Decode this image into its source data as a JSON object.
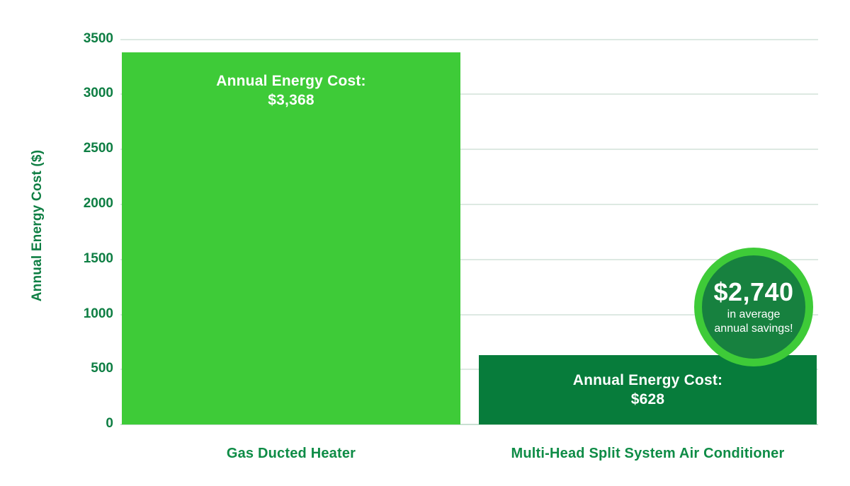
{
  "chart_data": {
    "type": "bar",
    "title": "",
    "xlabel": "",
    "ylabel": "Annual Energy Cost ($)",
    "categories": [
      "Gas Ducted Heater",
      "Multi-Head Split System Air Conditioner"
    ],
    "values": [
      3368,
      628
    ],
    "ylim": [
      0,
      3500
    ],
    "ytick_step": 500,
    "grid": "horizontal",
    "legend": "none",
    "yticks": [
      "3500",
      "3000",
      "2500",
      "2000",
      "1500",
      "1000",
      "500",
      "0"
    ],
    "bars": [
      {
        "category": "Gas Ducted Heater",
        "value": 3368,
        "label_line1": "Annual Energy Cost:",
        "label_line2": "$3,368",
        "color": "#3ecb38"
      },
      {
        "category": "Multi-Head Split System Air Conditioner",
        "value": 628,
        "label_line1": "Annual Energy Cost:",
        "label_line2": "$628",
        "color": "#077c3b"
      }
    ],
    "annotation_badge": {
      "headline": "$2,740",
      "line1": "in average",
      "line2": "annual savings!",
      "fill_color": "#17813f",
      "ring_color": "#3ecb38"
    }
  },
  "colors": {
    "bright_green": "#3ecb38",
    "dark_green": "#077c3b",
    "axis_text_green": "#0e7e43",
    "category_text_green": "#0e8c46",
    "gridline": "#dde9e2",
    "background": "#ffffff"
  }
}
